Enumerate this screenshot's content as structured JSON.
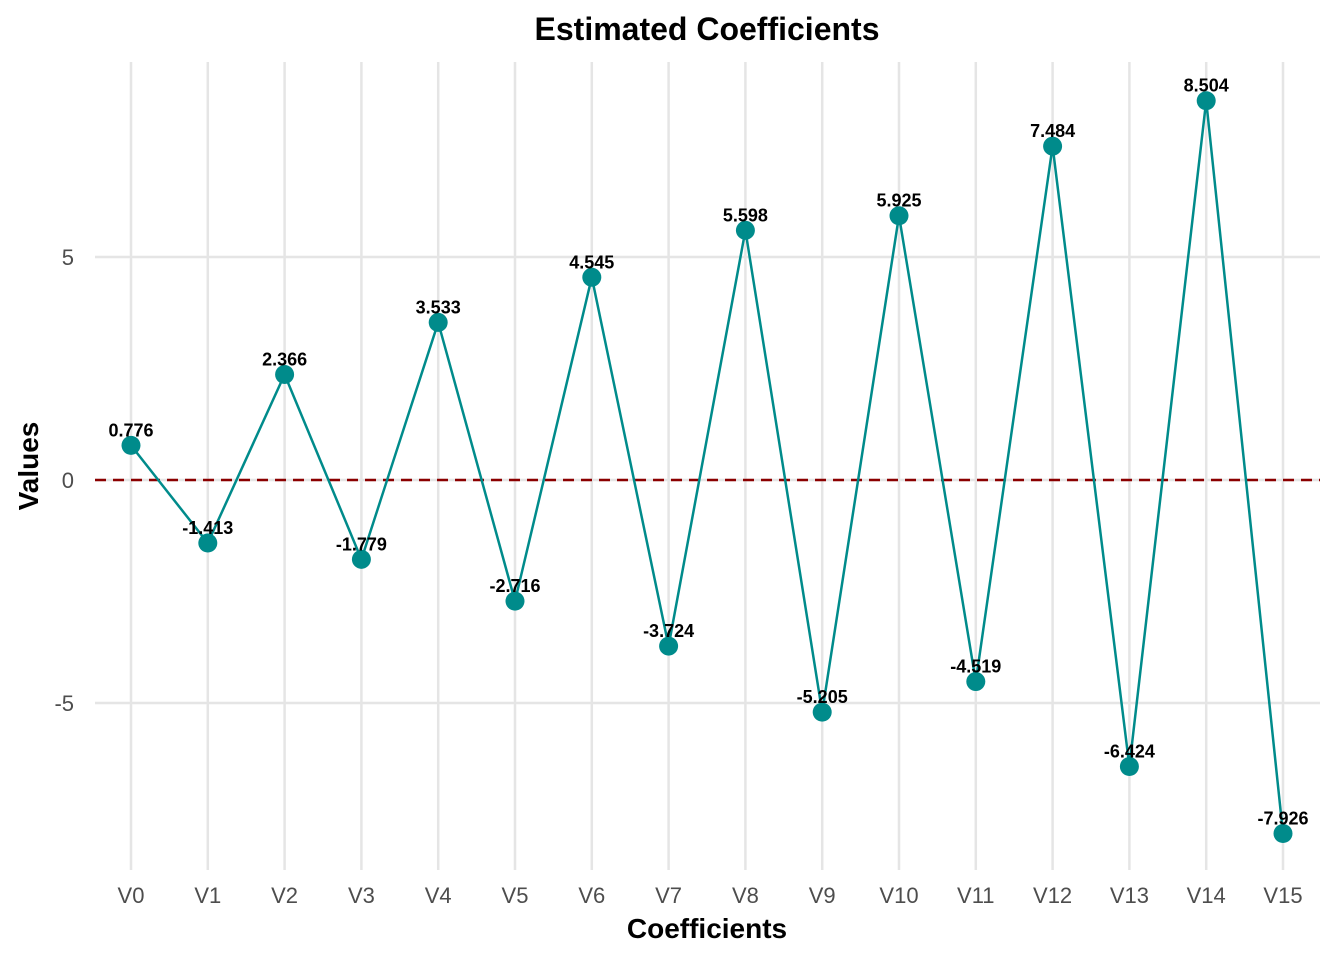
{
  "chart_data": {
    "type": "line",
    "title": "Estimated Coefficients",
    "xlabel": "Coefficients",
    "ylabel": "Values",
    "categories": [
      "V0",
      "V1",
      "V2",
      "V3",
      "V4",
      "V5",
      "V6",
      "V7",
      "V8",
      "V9",
      "V10",
      "V11",
      "V12",
      "V13",
      "V14",
      "V15"
    ],
    "values": [
      0.776,
      -1.413,
      2.366,
      -1.779,
      3.533,
      -2.716,
      4.545,
      -3.724,
      5.598,
      -5.205,
      5.925,
      -4.519,
      7.484,
      -6.424,
      8.504,
      -7.926
    ],
    "data_labels": [
      "0.776",
      "-1.413",
      "2.366",
      "-1.779",
      "3.533",
      "-2.716",
      "4.545",
      "-3.724",
      "5.598",
      "-5.205",
      "5.925",
      "-4.519",
      "7.484",
      "-6.424",
      "8.504",
      "-7.926"
    ],
    "yticks": [
      -5,
      0,
      5
    ],
    "ytick_labels": [
      "-5",
      "0",
      "5"
    ],
    "ylim": [
      -8.74,
      9.37
    ],
    "reference_line": {
      "y": 0,
      "style": "dashed",
      "color": "#8B0000"
    },
    "line_color": "#008B8B",
    "point_color": "#008B8B",
    "grid": true,
    "legend": "none"
  }
}
